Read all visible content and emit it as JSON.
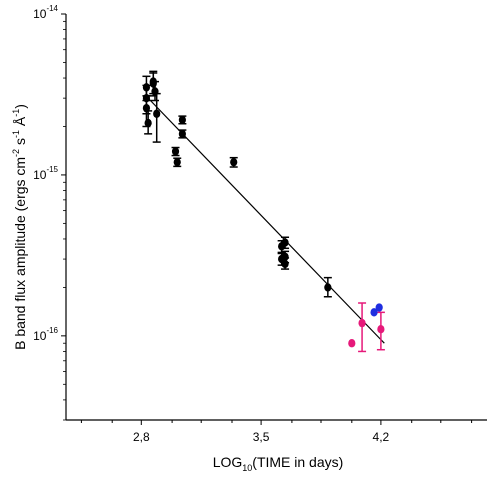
{
  "chart_data": {
    "type": "scatter",
    "xlabel": "LOG10(TIME in days)",
    "xlabel_parts": {
      "base": "LOG",
      "sub": "10",
      "rest": "(TIME in days)"
    },
    "ylabel": "B band flux amplitude (ergs cm-2 s-1 Å-1)",
    "ylabel_parts": {
      "main": "B band flux amplitude (ergs cm",
      "sup1": "-2",
      "mid1": " s",
      "sup2": "-1",
      "mid2": " Å",
      "sup3": "-1",
      "end": ")"
    },
    "x_ticks": [
      {
        "value": 2.8,
        "label": "2,8"
      },
      {
        "value": 3.5,
        "label": "3,5"
      },
      {
        "value": 4.2,
        "label": "4,2"
      }
    ],
    "y_ticks": [
      {
        "value": 1e-14,
        "base": "10",
        "exp": "-14"
      },
      {
        "value": 1e-15,
        "base": "10",
        "exp": "-15"
      },
      {
        "value": 1e-16,
        "base": "10",
        "exp": "-16"
      }
    ],
    "xlim": [
      2.36,
      4.82
    ],
    "ylim": [
      3e-17,
      1e-14
    ],
    "yscale": "log",
    "grid": false,
    "series": [
      {
        "color": "#000000",
        "points": [
          {
            "x": 2.83,
            "y": 3.5e-15,
            "err": [
              4.1e-15,
              2.9e-15
            ]
          },
          {
            "x": 2.83,
            "y": 3e-15,
            "err": [
              3.6e-15,
              2.4e-15
            ]
          },
          {
            "x": 2.83,
            "y": 2.6e-15,
            "err": [
              3.1e-15,
              2e-15
            ]
          },
          {
            "x": 2.84,
            "y": 2.1e-15,
            "err": [
              2.5e-15,
              1.8e-15
            ]
          },
          {
            "x": 2.87,
            "y": 3.8e-15,
            "err": [
              4.4e-15,
              3.2e-15
            ]
          },
          {
            "x": 2.87,
            "y": 3.7e-15,
            "err": [
              4.3e-15,
              3.1e-15
            ]
          },
          {
            "x": 2.88,
            "y": 3.3e-15,
            "err": [
              3.8e-15,
              2.9e-15
            ]
          },
          {
            "x": 2.89,
            "y": 2.4e-15,
            "err": [
              3.2e-15,
              1.6e-15
            ]
          },
          {
            "x": 3.0,
            "y": 1.4e-15,
            "err": [
              1.48e-15,
              1.32e-15
            ]
          },
          {
            "x": 3.01,
            "y": 1.2e-15,
            "err": [
              1.27e-15,
              1.13e-15
            ]
          },
          {
            "x": 3.04,
            "y": 2.2e-15,
            "err": [
              2.32e-15,
              2.08e-15
            ]
          },
          {
            "x": 3.04,
            "y": 1.8e-15,
            "err": [
              1.9e-15,
              1.7e-15
            ]
          },
          {
            "x": 3.34,
            "y": 1.2e-15,
            "err": [
              1.28e-15,
              1.12e-15
            ]
          },
          {
            "x": 3.62,
            "y": 3.6e-16,
            "err": [
              3.9e-16,
              3.3e-16
            ]
          },
          {
            "x": 3.62,
            "y": 3e-16,
            "err": [
              3.25e-16,
              2.75e-16
            ]
          },
          {
            "x": 3.64,
            "y": 3.8e-16,
            "err": [
              4.1e-16,
              3.5e-16
            ]
          },
          {
            "x": 3.64,
            "y": 3.1e-16,
            "err": [
              3.35e-16,
              2.85e-16
            ]
          },
          {
            "x": 3.64,
            "y": 2.8e-16,
            "err": [
              3.05e-16,
              2.6e-16
            ]
          },
          {
            "x": 3.89,
            "y": 2e-16,
            "err": [
              2.3e-16,
              1.75e-16
            ]
          }
        ]
      },
      {
        "color": "#e6197a",
        "points": [
          {
            "x": 4.03,
            "y": 9e-17,
            "err": null
          },
          {
            "x": 4.09,
            "y": 1.2e-16,
            "err": [
              1.6e-16,
              8e-17
            ]
          },
          {
            "x": 4.2,
            "y": 1.1e-16,
            "err": [
              1.4e-16,
              8.2e-17
            ]
          }
        ]
      },
      {
        "color": "#1f2ee0",
        "points": [
          {
            "x": 4.16,
            "y": 1.4e-16,
            "err": null
          },
          {
            "x": 4.19,
            "y": 1.5e-16,
            "err": null
          }
        ]
      }
    ],
    "fit_line": {
      "x": [
        2.84,
        4.22
      ],
      "y": [
        3e-15,
        9e-17
      ]
    }
  }
}
